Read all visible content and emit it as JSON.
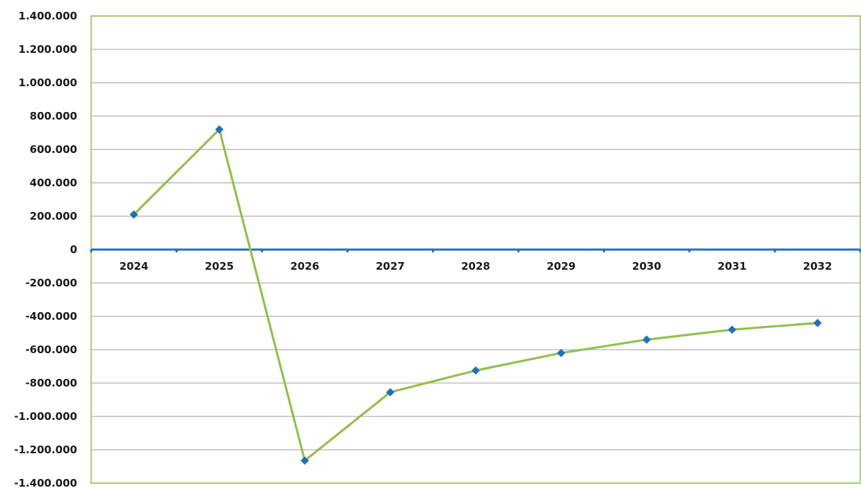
{
  "chart_data": {
    "type": "line",
    "title": "",
    "xlabel": "",
    "ylabel": "",
    "categories": [
      "2024",
      "2025",
      "2026",
      "2027",
      "2028",
      "2029",
      "2030",
      "2031",
      "2032"
    ],
    "series": [
      {
        "values": [
          210000,
          720000,
          -1265000,
          -855000,
          -725000,
          -620000,
          -540000,
          -480000,
          -440000
        ],
        "color": "#92c04a",
        "marker_color": "#1f6fc0"
      }
    ],
    "ylim": [
      -1400000,
      1400000
    ],
    "yticks": [
      1400000,
      1200000,
      1000000,
      800000,
      600000,
      400000,
      200000,
      0,
      -200000,
      -400000,
      -600000,
      -800000,
      -1000000,
      -1200000,
      -1400000
    ],
    "ytick_labels": [
      "1.400.000",
      "1.200.000",
      "1.000.000",
      "800.000",
      "600.000",
      "400.000",
      "200.000",
      "0",
      "-200.000",
      "-400.000",
      "-600.000",
      "-800.000",
      "-1.000.000",
      "-1.200.000",
      "-1.400.000"
    ],
    "grid": true,
    "legend": "none",
    "colors": {
      "gridline": "#bdbdbd",
      "plot_border": "#92c04a",
      "zero_axis": "#1f6fc0"
    }
  }
}
